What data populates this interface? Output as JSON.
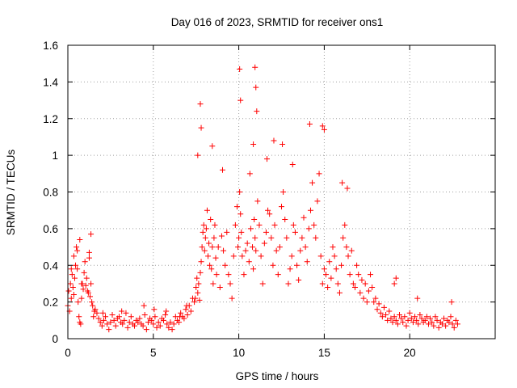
{
  "chart_data": {
    "type": "scatter",
    "title": "Day 016 of 2023, SRMTID for receiver ons1",
    "xlabel": "GPS time / hours",
    "ylabel": "SRMTID / TECUs",
    "xlim": [
      0,
      25
    ],
    "ylim": [
      0,
      1.6
    ],
    "xticks": [
      0,
      5,
      10,
      15,
      20
    ],
    "xtick_labels": [
      "0",
      "5",
      "10",
      "15",
      "20"
    ],
    "yticks": [
      0,
      0.2,
      0.4,
      0.6,
      0.8,
      1.0,
      1.2,
      1.4,
      1.6
    ],
    "ytick_labels": [
      "0",
      "0.2",
      "0.4",
      "0.6",
      "0.8",
      "1",
      "1.2",
      "1.4",
      "1.6"
    ],
    "grid": true,
    "marker": "+",
    "color": "#ff0000",
    "series": [
      {
        "name": "SRMTID",
        "x": [
          0.0,
          0.05,
          0.1,
          0.15,
          0.2,
          0.25,
          0.3,
          0.35,
          0.4,
          0.45,
          0.5,
          0.55,
          0.6,
          0.65,
          0.7,
          0.75,
          0.8,
          0.85,
          0.9,
          0.95,
          1.0,
          1.05,
          1.1,
          1.15,
          1.2,
          1.25,
          1.3,
          1.35,
          1.4,
          1.45,
          1.5,
          1.55,
          1.6,
          1.7,
          1.8,
          1.9,
          2.0,
          2.1,
          2.2,
          2.3,
          2.4,
          2.5,
          2.6,
          2.7,
          2.8,
          2.9,
          3.0,
          3.1,
          3.2,
          3.3,
          3.4,
          3.5,
          3.6,
          3.7,
          3.8,
          3.9,
          4.0,
          4.1,
          4.2,
          4.3,
          4.4,
          4.5,
          4.6,
          4.7,
          4.8,
          4.9,
          5.0,
          5.1,
          5.2,
          5.3,
          5.4,
          5.5,
          5.6,
          5.7,
          5.8,
          5.9,
          6.0,
          6.1,
          6.2,
          6.3,
          6.4,
          6.5,
          6.6,
          6.7,
          6.8,
          6.9,
          7.0,
          7.1,
          7.2,
          7.3,
          7.4,
          7.5,
          7.55,
          7.6,
          7.65,
          7.7,
          7.75,
          7.8,
          7.85,
          7.9,
          7.95,
          8.0,
          8.05,
          8.1,
          8.15,
          8.2,
          8.25,
          8.3,
          8.35,
          8.4,
          8.45,
          8.5,
          8.55,
          8.6,
          8.65,
          8.7,
          8.8,
          8.9,
          9.0,
          9.1,
          9.2,
          9.3,
          9.4,
          9.5,
          9.6,
          9.7,
          9.8,
          9.9,
          9.95,
          10.0,
          10.05,
          10.1,
          10.15,
          10.2,
          10.3,
          10.4,
          10.5,
          10.6,
          10.7,
          10.8,
          10.85,
          10.9,
          10.95,
          11.0,
          11.1,
          11.2,
          11.3,
          11.4,
          11.5,
          11.6,
          11.7,
          11.8,
          11.9,
          12.0,
          12.1,
          12.2,
          12.3,
          12.4,
          12.5,
          12.6,
          12.7,
          12.8,
          12.9,
          13.0,
          13.1,
          13.2,
          13.3,
          13.4,
          13.5,
          13.6,
          13.7,
          13.8,
          13.9,
          14.0,
          14.1,
          14.2,
          14.3,
          14.4,
          14.5,
          14.6,
          14.7,
          14.8,
          14.9,
          15.0,
          15.1,
          15.2,
          15.3,
          15.4,
          15.5,
          15.6,
          15.7,
          15.8,
          15.9,
          16.0,
          16.1,
          16.2,
          16.3,
          16.4,
          16.5,
          16.6,
          16.7,
          16.8,
          16.9,
          17.0,
          17.1,
          17.2,
          17.3,
          17.4,
          17.5,
          17.6,
          17.7,
          17.8,
          17.9,
          18.0,
          18.1,
          18.2,
          18.3,
          18.4,
          18.5,
          18.6,
          18.7,
          18.8,
          18.9,
          19.0,
          19.1,
          19.2,
          19.3,
          19.4,
          19.5,
          19.6,
          19.7,
          19.8,
          19.9,
          20.0,
          20.1,
          20.2,
          20.3,
          20.4,
          20.5,
          20.6,
          20.7,
          20.8,
          20.9,
          21.0,
          21.1,
          21.2,
          21.3,
          21.4,
          21.5,
          21.6,
          21.7,
          21.8,
          21.9,
          22.0,
          22.1,
          22.2,
          22.3,
          22.4,
          22.5,
          22.6,
          22.7,
          22.8,
          10.05,
          10.1,
          10.95,
          11.0,
          11.05,
          7.75,
          7.8,
          14.15,
          14.9,
          15.0,
          12.55,
          10.85,
          13.15,
          16.05,
          16.35,
          9.05,
          8.45,
          12.05,
          11.65,
          10.65,
          0.7,
          1.35,
          0.55,
          1.25,
          0.8,
          0.2,
          0.35,
          2.05,
          3.15,
          4.45,
          5.05,
          5.75,
          6.55,
          6.95,
          7.45,
          7.6,
          19.1,
          19.2,
          20.45,
          22.45
        ],
        "y": [
          0.18,
          0.26,
          0.15,
          0.3,
          0.22,
          0.35,
          0.28,
          0.45,
          0.33,
          0.4,
          0.5,
          0.38,
          0.2,
          0.12,
          0.09,
          0.08,
          0.22,
          0.3,
          0.27,
          0.36,
          0.42,
          0.29,
          0.33,
          0.26,
          0.25,
          0.44,
          0.23,
          0.3,
          0.2,
          0.18,
          0.12,
          0.15,
          0.16,
          0.14,
          0.11,
          0.09,
          0.07,
          0.1,
          0.12,
          0.08,
          0.05,
          0.09,
          0.13,
          0.1,
          0.07,
          0.11,
          0.12,
          0.09,
          0.08,
          0.1,
          0.14,
          0.06,
          0.09,
          0.12,
          0.08,
          0.07,
          0.1,
          0.09,
          0.11,
          0.08,
          0.07,
          0.13,
          0.05,
          0.09,
          0.11,
          0.1,
          0.08,
          0.12,
          0.06,
          0.09,
          0.07,
          0.11,
          0.1,
          0.13,
          0.08,
          0.06,
          0.09,
          0.05,
          0.08,
          0.12,
          0.1,
          0.09,
          0.14,
          0.12,
          0.11,
          0.16,
          0.13,
          0.18,
          0.15,
          0.22,
          0.2,
          0.28,
          0.33,
          0.25,
          0.3,
          0.21,
          0.36,
          0.42,
          0.5,
          0.58,
          0.62,
          0.48,
          0.55,
          0.6,
          0.7,
          0.45,
          0.52,
          0.4,
          0.65,
          0.38,
          0.5,
          0.3,
          0.55,
          0.62,
          0.44,
          0.35,
          0.5,
          0.28,
          0.56,
          0.48,
          0.4,
          0.58,
          0.35,
          0.3,
          0.22,
          0.45,
          0.62,
          0.72,
          0.5,
          0.55,
          0.8,
          0.68,
          0.58,
          0.45,
          0.35,
          0.48,
          0.52,
          0.42,
          0.6,
          0.5,
          0.38,
          0.65,
          0.55,
          0.48,
          0.75,
          0.62,
          0.45,
          0.3,
          0.52,
          0.58,
          0.7,
          0.68,
          0.55,
          0.4,
          0.62,
          0.48,
          0.35,
          0.5,
          0.72,
          0.8,
          0.65,
          0.55,
          0.3,
          0.38,
          0.45,
          0.62,
          0.58,
          0.4,
          0.32,
          0.48,
          0.55,
          0.66,
          0.5,
          0.42,
          0.6,
          0.7,
          0.85,
          0.62,
          0.55,
          0.75,
          0.9,
          0.45,
          0.3,
          0.38,
          0.35,
          0.28,
          0.42,
          0.33,
          0.5,
          0.45,
          0.38,
          0.3,
          0.25,
          0.4,
          0.55,
          0.62,
          0.5,
          0.45,
          0.35,
          0.48,
          0.3,
          0.28,
          0.4,
          0.35,
          0.25,
          0.32,
          0.22,
          0.3,
          0.2,
          0.26,
          0.35,
          0.28,
          0.2,
          0.22,
          0.16,
          0.19,
          0.14,
          0.12,
          0.17,
          0.13,
          0.1,
          0.15,
          0.11,
          0.09,
          0.12,
          0.1,
          0.08,
          0.13,
          0.11,
          0.09,
          0.12,
          0.07,
          0.1,
          0.14,
          0.11,
          0.09,
          0.12,
          0.1,
          0.08,
          0.13,
          0.11,
          0.09,
          0.1,
          0.12,
          0.08,
          0.11,
          0.09,
          0.07,
          0.12,
          0.1,
          0.06,
          0.09,
          0.08,
          0.11,
          0.07,
          0.1,
          0.09,
          0.12,
          0.08,
          0.06,
          0.1,
          0.08,
          1.47,
          1.3,
          1.48,
          1.37,
          1.24,
          1.28,
          1.15,
          1.17,
          1.16,
          1.14,
          1.06,
          1.06,
          0.95,
          0.85,
          0.82,
          0.92,
          1.05,
          1.08,
          0.98,
          0.9,
          0.54,
          0.57,
          0.48,
          0.47,
          0.3,
          0.38,
          0.24,
          0.14,
          0.15,
          0.18,
          0.16,
          0.15,
          0.12,
          0.18,
          0.22,
          1.0,
          0.3,
          0.33,
          0.22,
          0.2
        ]
      }
    ]
  }
}
